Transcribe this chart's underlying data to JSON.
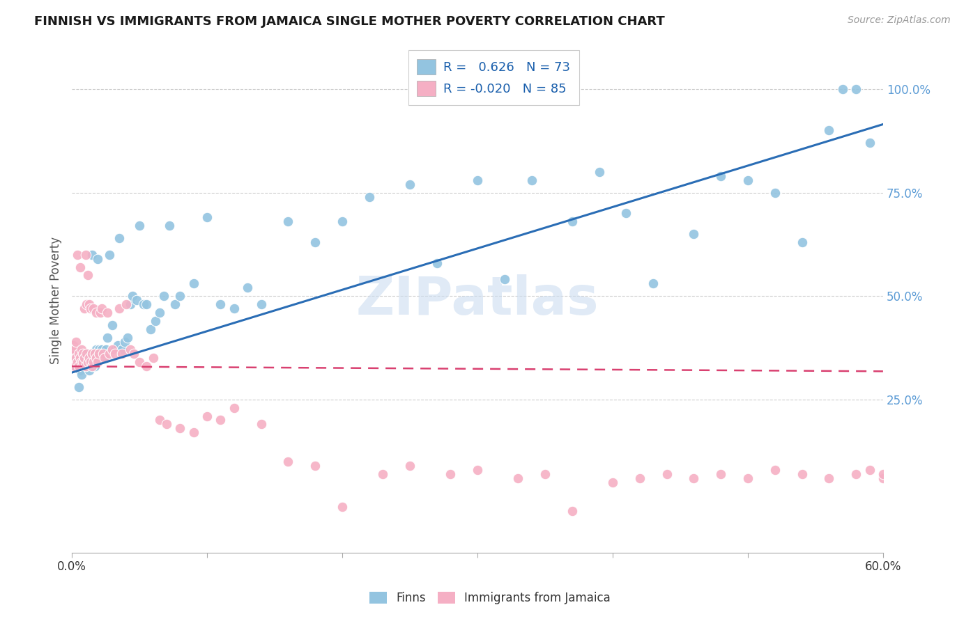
{
  "title": "FINNISH VS IMMIGRANTS FROM JAMAICA SINGLE MOTHER POVERTY CORRELATION CHART",
  "source": "Source: ZipAtlas.com",
  "ylabel": "Single Mother Poverty",
  "right_yticks": [
    "25.0%",
    "50.0%",
    "75.0%",
    "100.0%"
  ],
  "right_ytick_vals": [
    0.25,
    0.5,
    0.75,
    1.0
  ],
  "watermark": "ZIPatlas",
  "blue_color": "#93c4e0",
  "pink_color": "#f5afc4",
  "trendline_blue": "#2a6db5",
  "trendline_pink": "#d94070",
  "blue_r": 0.626,
  "blue_n": 73,
  "pink_r": -0.02,
  "pink_n": 85,
  "xlim": [
    0.0,
    0.6
  ],
  "ylim": [
    -0.12,
    1.1
  ],
  "blue_intercept": 0.315,
  "blue_slope": 1.0,
  "pink_intercept": 0.33,
  "pink_slope": -0.02,
  "blue_points_x": [
    0.002,
    0.003,
    0.005,
    0.006,
    0.007,
    0.008,
    0.009,
    0.01,
    0.011,
    0.012,
    0.013,
    0.014,
    0.015,
    0.015,
    0.016,
    0.017,
    0.018,
    0.019,
    0.02,
    0.021,
    0.022,
    0.023,
    0.025,
    0.026,
    0.028,
    0.03,
    0.032,
    0.034,
    0.035,
    0.037,
    0.039,
    0.041,
    0.043,
    0.045,
    0.048,
    0.05,
    0.053,
    0.055,
    0.058,
    0.062,
    0.065,
    0.068,
    0.072,
    0.076,
    0.08,
    0.09,
    0.1,
    0.11,
    0.12,
    0.13,
    0.14,
    0.16,
    0.18,
    0.2,
    0.22,
    0.25,
    0.27,
    0.3,
    0.32,
    0.34,
    0.37,
    0.39,
    0.41,
    0.43,
    0.46,
    0.48,
    0.5,
    0.52,
    0.54,
    0.56,
    0.57,
    0.58,
    0.59
  ],
  "blue_points_y": [
    0.35,
    0.33,
    0.28,
    0.32,
    0.31,
    0.35,
    0.34,
    0.36,
    0.33,
    0.36,
    0.32,
    0.34,
    0.6,
    0.36,
    0.35,
    0.33,
    0.37,
    0.59,
    0.37,
    0.36,
    0.37,
    0.35,
    0.37,
    0.4,
    0.6,
    0.43,
    0.37,
    0.38,
    0.64,
    0.37,
    0.39,
    0.4,
    0.48,
    0.5,
    0.49,
    0.67,
    0.48,
    0.48,
    0.42,
    0.44,
    0.46,
    0.5,
    0.67,
    0.48,
    0.5,
    0.53,
    0.69,
    0.48,
    0.47,
    0.52,
    0.48,
    0.68,
    0.63,
    0.68,
    0.74,
    0.77,
    0.58,
    0.78,
    0.54,
    0.78,
    0.68,
    0.8,
    0.7,
    0.53,
    0.65,
    0.79,
    0.78,
    0.75,
    0.63,
    0.9,
    1.0,
    1.0,
    0.87
  ],
  "pink_points_x": [
    0.001,
    0.001,
    0.001,
    0.002,
    0.002,
    0.003,
    0.003,
    0.004,
    0.004,
    0.005,
    0.005,
    0.006,
    0.006,
    0.007,
    0.007,
    0.008,
    0.008,
    0.009,
    0.009,
    0.01,
    0.01,
    0.011,
    0.011,
    0.012,
    0.012,
    0.013,
    0.013,
    0.014,
    0.014,
    0.015,
    0.015,
    0.016,
    0.016,
    0.017,
    0.018,
    0.018,
    0.019,
    0.02,
    0.021,
    0.022,
    0.023,
    0.024,
    0.026,
    0.028,
    0.03,
    0.032,
    0.035,
    0.037,
    0.04,
    0.043,
    0.046,
    0.05,
    0.055,
    0.06,
    0.065,
    0.07,
    0.08,
    0.09,
    0.1,
    0.11,
    0.12,
    0.14,
    0.16,
    0.18,
    0.2,
    0.23,
    0.25,
    0.28,
    0.3,
    0.33,
    0.35,
    0.37,
    0.4,
    0.42,
    0.44,
    0.46,
    0.48,
    0.5,
    0.52,
    0.54,
    0.56,
    0.58,
    0.59,
    0.6,
    0.6
  ],
  "pink_points_y": [
    0.34,
    0.36,
    0.38,
    0.33,
    0.37,
    0.35,
    0.39,
    0.34,
    0.6,
    0.36,
    0.33,
    0.35,
    0.57,
    0.34,
    0.37,
    0.36,
    0.34,
    0.35,
    0.47,
    0.33,
    0.6,
    0.36,
    0.48,
    0.34,
    0.55,
    0.35,
    0.48,
    0.34,
    0.47,
    0.36,
    0.33,
    0.47,
    0.34,
    0.36,
    0.35,
    0.46,
    0.34,
    0.36,
    0.46,
    0.47,
    0.36,
    0.35,
    0.46,
    0.36,
    0.37,
    0.36,
    0.47,
    0.36,
    0.48,
    0.37,
    0.36,
    0.34,
    0.33,
    0.35,
    0.2,
    0.19,
    0.18,
    0.17,
    0.21,
    0.2,
    0.23,
    0.19,
    0.1,
    0.09,
    -0.01,
    0.07,
    0.09,
    0.07,
    0.08,
    0.06,
    0.07,
    -0.02,
    0.05,
    0.06,
    0.07,
    0.06,
    0.07,
    0.06,
    0.08,
    0.07,
    0.06,
    0.07,
    0.08,
    0.06,
    0.07
  ]
}
